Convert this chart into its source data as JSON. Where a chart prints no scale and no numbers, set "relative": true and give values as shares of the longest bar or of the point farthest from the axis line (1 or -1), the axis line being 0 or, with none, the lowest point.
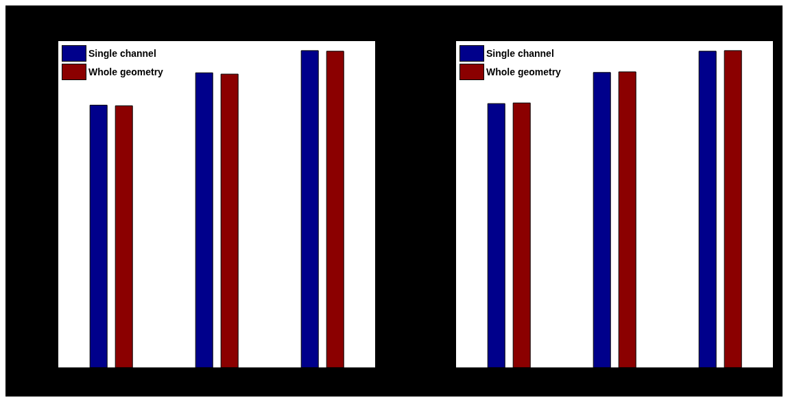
{
  "chart_data": [
    {
      "type": "bar",
      "relative": true,
      "categories": [
        null,
        null,
        null
      ],
      "legend": "top left",
      "series": [
        {
          "name": "Single channel",
          "color": "#00008b",
          "values": [
            0.828,
            0.93,
            1
          ]
        },
        {
          "name": "Whole geometry",
          "color": "#8b0000",
          "values": [
            0.826,
            0.926,
            0.998
          ]
        }
      ]
    },
    {
      "type": "bar",
      "relative": true,
      "categories": [
        null,
        null,
        null
      ],
      "legend": "top left",
      "series": [
        {
          "name": "Single channel",
          "color": "#00008b",
          "values": [
            0.833,
            0.931,
            0.998
          ]
        },
        {
          "name": "Whole geometry",
          "color": "#8b0000",
          "values": [
            0.835,
            0.933,
            1
          ]
        }
      ]
    }
  ]
}
